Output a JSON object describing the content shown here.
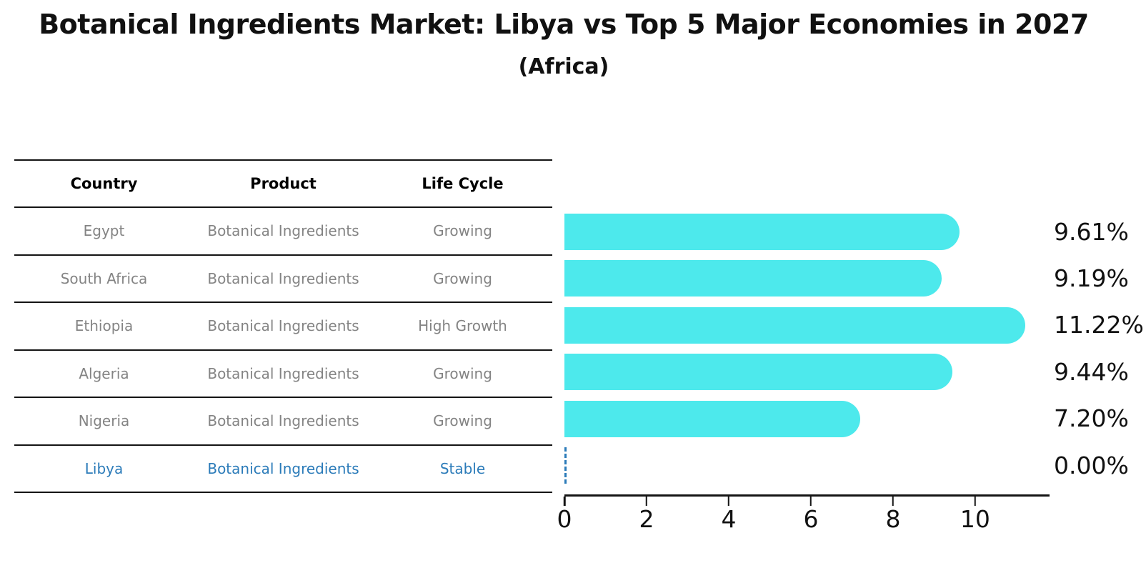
{
  "chart_data": {
    "type": "bar",
    "orientation": "horizontal",
    "title": "Botanical Ingredients Market: Libya vs Top 5 Major Economies in 2027",
    "subtitle": "(Africa)",
    "categories": [
      "Egypt",
      "South Africa",
      "Ethiopia",
      "Algeria",
      "Nigeria",
      "Libya"
    ],
    "values": [
      9.61,
      9.19,
      11.22,
      9.44,
      7.2,
      0.0
    ],
    "value_labels": [
      "9.61%",
      "9.19%",
      "11.22%",
      "9.44%",
      "7.20%",
      "0.00%"
    ],
    "xlabel": "",
    "ylabel": "",
    "xlim": [
      0,
      11.81
    ],
    "x_ticks": [
      0,
      2,
      4,
      6,
      8,
      10
    ],
    "grid": false,
    "legend": false,
    "bar_color": "#4DE9EC",
    "highlight_index": 5,
    "highlight_color": "#2B7BB9"
  },
  "table": {
    "headers": [
      "Country",
      "Product",
      "Life Cycle"
    ],
    "rows": [
      {
        "country": "Egypt",
        "product": "Botanical Ingredients",
        "life_cycle": "Growing",
        "highlight": false
      },
      {
        "country": "South Africa",
        "product": "Botanical Ingredients",
        "life_cycle": "Growing",
        "highlight": false
      },
      {
        "country": "Ethiopia",
        "product": "Botanical Ingredients",
        "life_cycle": "High Growth",
        "highlight": false
      },
      {
        "country": "Algeria",
        "product": "Botanical Ingredients",
        "life_cycle": "Growing",
        "highlight": false
      },
      {
        "country": "Nigeria",
        "product": "Botanical Ingredients",
        "life_cycle": "Growing",
        "highlight": false
      },
      {
        "country": "Libya",
        "product": "Botanical Ingredients",
        "life_cycle": "Stable",
        "highlight": true
      }
    ]
  },
  "colors": {
    "background": "#FFFFFF",
    "axis": "#141414",
    "table_line": "#141414",
    "header_text": "#000000",
    "body_text": "#848484",
    "label_text": "#111111"
  }
}
